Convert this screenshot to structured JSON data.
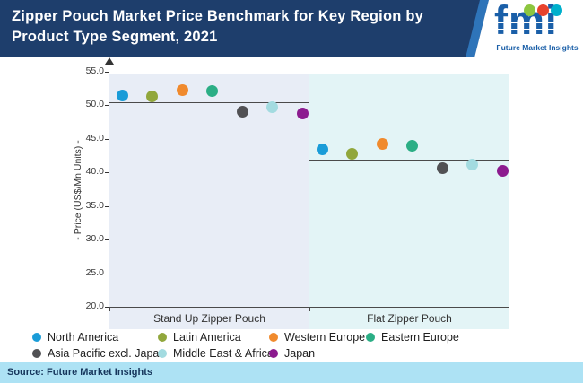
{
  "header": {
    "title": "Zipper Pouch Market Price Benchmark for Key Region by Product Type Segment, 2021",
    "logo": {
      "text": "fmi",
      "subtext": "Future Market Insights",
      "badge_colors": [
        "#8dc63f",
        "#e8432d",
        "#00b0cc"
      ]
    }
  },
  "footer": {
    "source": "Source: Future Market Insights"
  },
  "chart_data": {
    "type": "scatter",
    "title": "Zipper Pouch Market Price Benchmark for Key Region by Product Type Segment, 2021",
    "xlabel": "",
    "ylabel": "- Price (US$/Mn Units) -",
    "ylim": [
      20.0,
      55.0
    ],
    "yticks": [
      55.0,
      50.0,
      45.0,
      40.0,
      35.0,
      30.0,
      25.0,
      20.0
    ],
    "categories": [
      "Stand Up Zipper Pouch",
      "Flat Zipper Pouch"
    ],
    "segment_backgrounds": [
      "#e8edf6",
      "#e3f4f6"
    ],
    "benchmark_lines": [
      {
        "category": "Stand Up Zipper Pouch",
        "value": 50.5
      },
      {
        "category": "Flat Zipper Pouch",
        "value": 41.9
      }
    ],
    "series": [
      {
        "name": "North America",
        "color": "#1a9cd8",
        "values": [
          51.5,
          43.5
        ]
      },
      {
        "name": "Latin America",
        "color": "#91a73c",
        "values": [
          51.3,
          42.8
        ]
      },
      {
        "name": "Western Europe",
        "color": "#f08a2d",
        "values": [
          52.3,
          44.3
        ]
      },
      {
        "name": "Eastern Europe",
        "color": "#2bae85",
        "values": [
          52.1,
          44.0
        ]
      },
      {
        "name": "Asia Pacific excl. Japan",
        "color": "#515154",
        "values": [
          49.1,
          40.6
        ]
      },
      {
        "name": "Middle East & Africa",
        "color": "#a3dbe0",
        "values": [
          49.7,
          41.2
        ]
      },
      {
        "name": "Japan",
        "color": "#8c1b8f",
        "values": [
          48.8,
          40.3
        ]
      }
    ],
    "legend_position": "bottom",
    "grid": false
  }
}
